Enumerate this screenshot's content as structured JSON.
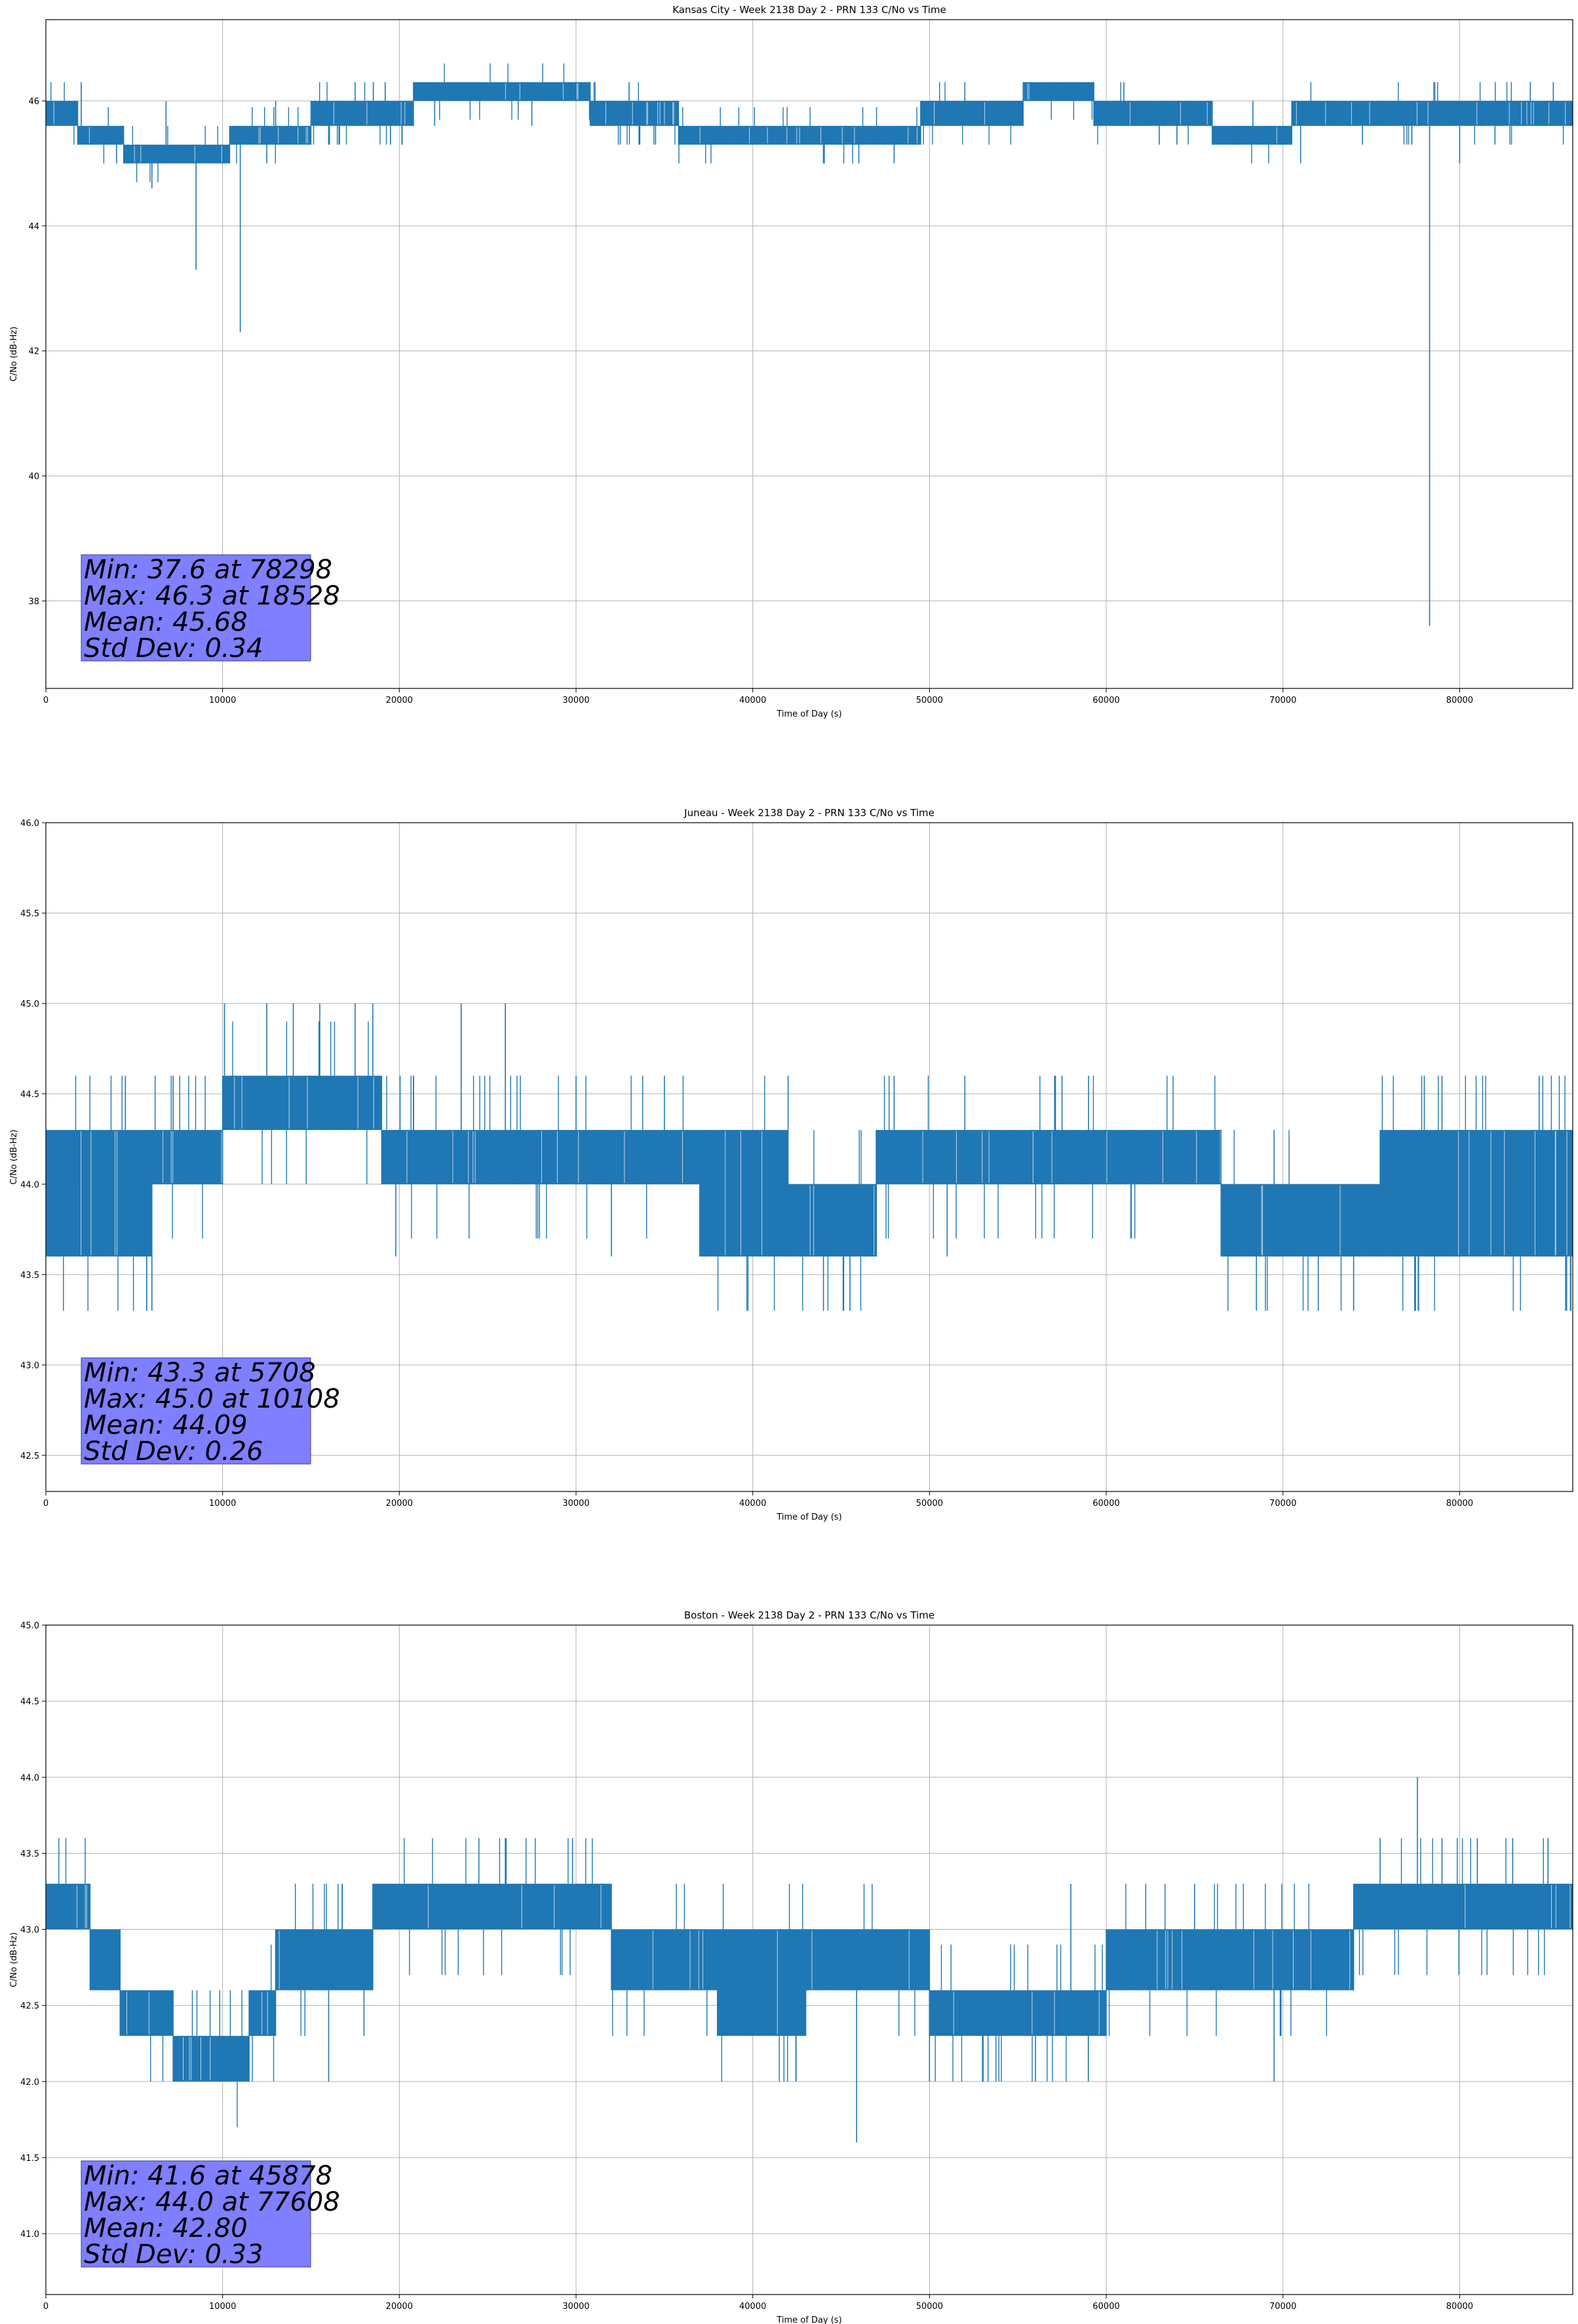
{
  "chart_data": [
    {
      "type": "line",
      "title": "Kansas City - Week 2138 Day 2 - PRN 133 C/No vs Time",
      "xlabel": "Time of Day (s)",
      "ylabel": "C/No (dB-Hz)",
      "xlim": [
        0,
        86400
      ],
      "ylim": [
        36.6,
        47.3
      ],
      "xticks": [
        0,
        10000,
        20000,
        30000,
        40000,
        50000,
        60000,
        70000,
        80000
      ],
      "yticks": [
        38,
        40,
        42,
        44,
        46
      ],
      "grid": true,
      "line_color": "#1f77b4",
      "stats": [
        "Min: 37.6 at 78298",
        "Max: 46.3 at 18528",
        "Mean: 45.68",
        "Std Dev: 0.34"
      ],
      "bands": [
        {
          "x": [
            0,
            1800
          ],
          "lo": 45.6,
          "hi": 46.0
        },
        {
          "x": [
            1800,
            4400
          ],
          "lo": 45.3,
          "hi": 45.6
        },
        {
          "x": [
            4400,
            10400
          ],
          "lo": 45.0,
          "hi": 45.3
        },
        {
          "x": [
            10400,
            15000
          ],
          "lo": 45.3,
          "hi": 45.6
        },
        {
          "x": [
            15000,
            20800
          ],
          "lo": 45.6,
          "hi": 46.0
        },
        {
          "x": [
            20800,
            30800
          ],
          "lo": 46.0,
          "hi": 46.3
        },
        {
          "x": [
            30800,
            35800
          ],
          "lo": 45.6,
          "hi": 46.0
        },
        {
          "x": [
            35800,
            49500
          ],
          "lo": 45.3,
          "hi": 45.6
        },
        {
          "x": [
            49500,
            55300
          ],
          "lo": 45.6,
          "hi": 46.0
        },
        {
          "x": [
            55300,
            59300
          ],
          "lo": 46.0,
          "hi": 46.3
        },
        {
          "x": [
            59300,
            66000
          ],
          "lo": 45.6,
          "hi": 46.0
        },
        {
          "x": [
            66000,
            70500
          ],
          "lo": 45.3,
          "hi": 45.6
        },
        {
          "x": [
            70500,
            86400
          ],
          "lo": 45.6,
          "hi": 46.0
        }
      ],
      "spikes_up": [
        [
          2000,
          46.3
        ],
        [
          6800,
          46.0
        ],
        [
          13000,
          46.0
        ],
        [
          17500,
          46.3
        ],
        [
          18528,
          46.3
        ],
        [
          19200,
          46.3
        ],
        [
          33000,
          46.3
        ],
        [
          52000,
          46.3
        ],
        [
          61000,
          46.3
        ],
        [
          68300,
          46.0
        ],
        [
          84000,
          46.3
        ],
        [
          85300,
          46.3
        ]
      ],
      "spikes_down": [
        [
          2300,
          45.3
        ],
        [
          4000,
          45.0
        ],
        [
          6000,
          44.6
        ],
        [
          8500,
          43.3
        ],
        [
          11000,
          42.3
        ],
        [
          12500,
          45.0
        ],
        [
          16000,
          45.3
        ],
        [
          19500,
          45.3
        ],
        [
          22000,
          45.6
        ],
        [
          27500,
          45.6
        ],
        [
          32500,
          45.3
        ],
        [
          34500,
          45.3
        ],
        [
          44000,
          45.0
        ],
        [
          46000,
          45.0
        ],
        [
          48000,
          45.0
        ],
        [
          55000,
          45.6
        ],
        [
          60500,
          45.6
        ],
        [
          63000,
          45.3
        ],
        [
          64000,
          45.3
        ],
        [
          71000,
          45.0
        ],
        [
          74500,
          45.3
        ],
        [
          78298,
          37.6
        ],
        [
          80000,
          45.0
        ],
        [
          82000,
          45.3
        ]
      ]
    },
    {
      "type": "line",
      "title": "Juneau - Week 2138 Day 2 - PRN 133 C/No vs Time",
      "xlabel": "Time of Day (s)",
      "ylabel": "C/No (dB-Hz)",
      "xlim": [
        0,
        86400
      ],
      "ylim": [
        42.3,
        46.0
      ],
      "xticks": [
        0,
        10000,
        20000,
        30000,
        40000,
        50000,
        60000,
        70000,
        80000
      ],
      "yticks": [
        42.5,
        43.0,
        43.5,
        44.0,
        44.5,
        45.0,
        45.5,
        46.0
      ],
      "grid": true,
      "line_color": "#1f77b4",
      "stats": [
        "Min: 43.3 at 5708",
        "Max: 45.0 at 10108",
        "Mean: 44.09",
        "Std Dev: 0.26"
      ],
      "bands": [
        {
          "x": [
            0,
            6000
          ],
          "lo": 43.6,
          "hi": 44.3
        },
        {
          "x": [
            6000,
            10000
          ],
          "lo": 44.0,
          "hi": 44.3
        },
        {
          "x": [
            10000,
            19000
          ],
          "lo": 44.3,
          "hi": 44.6
        },
        {
          "x": [
            19000,
            26500
          ],
          "lo": 44.0,
          "hi": 44.3
        },
        {
          "x": [
            26500,
            37000
          ],
          "lo": 44.0,
          "hi": 44.3
        },
        {
          "x": [
            37000,
            42000
          ],
          "lo": 43.6,
          "hi": 44.3
        },
        {
          "x": [
            42000,
            47000
          ],
          "lo": 43.6,
          "hi": 44.0
        },
        {
          "x": [
            47000,
            66500
          ],
          "lo": 44.0,
          "hi": 44.3
        },
        {
          "x": [
            66500,
            75500
          ],
          "lo": 43.6,
          "hi": 44.0
        },
        {
          "x": [
            75500,
            86400
          ],
          "lo": 43.6,
          "hi": 44.3
        }
      ],
      "spikes_up": [
        [
          4500,
          44.6
        ],
        [
          7200,
          44.6
        ],
        [
          10108,
          45.0
        ],
        [
          12500,
          45.0
        ],
        [
          14000,
          45.0
        ],
        [
          15500,
          45.0
        ],
        [
          17500,
          45.0
        ],
        [
          18500,
          45.0
        ],
        [
          23500,
          45.0
        ],
        [
          26000,
          45.0
        ],
        [
          30000,
          44.6
        ],
        [
          35000,
          44.6
        ],
        [
          42000,
          44.6
        ],
        [
          48000,
          44.6
        ],
        [
          52000,
          44.6
        ],
        [
          57500,
          44.6
        ],
        [
          59000,
          44.6
        ],
        [
          69500,
          44.3
        ],
        [
          78000,
          44.6
        ],
        [
          79000,
          44.6
        ],
        [
          84500,
          44.6
        ]
      ],
      "spikes_down": [
        [
          5708,
          43.3
        ],
        [
          6000,
          43.3
        ],
        [
          19800,
          43.6
        ],
        [
          32000,
          43.6
        ],
        [
          38500,
          43.6
        ],
        [
          44000,
          43.3
        ],
        [
          45500,
          43.3
        ],
        [
          51000,
          43.6
        ],
        [
          68500,
          43.3
        ],
        [
          72000,
          43.3
        ],
        [
          74000,
          43.3
        ],
        [
          77500,
          43.3
        ],
        [
          86000,
          43.3
        ]
      ]
    },
    {
      "type": "line",
      "title": "Boston - Week 2138 Day 2 - PRN 133 C/No vs Time",
      "xlabel": "Time of Day (s)",
      "ylabel": "C/No (dB-Hz)",
      "xlim": [
        0,
        86400
      ],
      "ylim": [
        40.6,
        45.0
      ],
      "xticks": [
        0,
        10000,
        20000,
        30000,
        40000,
        50000,
        60000,
        70000,
        80000
      ],
      "yticks": [
        41.0,
        41.5,
        42.0,
        42.5,
        43.0,
        43.5,
        44.0,
        44.5,
        45.0
      ],
      "grid": true,
      "line_color": "#1f77b4",
      "stats": [
        "Min: 41.6 at 45878",
        "Max: 44.0 at 77608",
        "Mean: 42.80",
        "Std Dev: 0.33"
      ],
      "bands": [
        {
          "x": [
            0,
            2500
          ],
          "lo": 43.0,
          "hi": 43.3
        },
        {
          "x": [
            2500,
            4200
          ],
          "lo": 42.6,
          "hi": 43.0
        },
        {
          "x": [
            4200,
            7200
          ],
          "lo": 42.3,
          "hi": 42.6
        },
        {
          "x": [
            7200,
            11500
          ],
          "lo": 42.0,
          "hi": 42.3
        },
        {
          "x": [
            11500,
            13000
          ],
          "lo": 42.3,
          "hi": 42.6
        },
        {
          "x": [
            13000,
            18500
          ],
          "lo": 42.6,
          "hi": 43.0
        },
        {
          "x": [
            18500,
            32000
          ],
          "lo": 43.0,
          "hi": 43.3
        },
        {
          "x": [
            32000,
            38000
          ],
          "lo": 42.6,
          "hi": 43.0
        },
        {
          "x": [
            38000,
            43000
          ],
          "lo": 42.3,
          "hi": 43.0
        },
        {
          "x": [
            43000,
            50000
          ],
          "lo": 42.6,
          "hi": 43.0
        },
        {
          "x": [
            50000,
            60000
          ],
          "lo": 42.3,
          "hi": 42.6
        },
        {
          "x": [
            60000,
            74000
          ],
          "lo": 42.6,
          "hi": 43.0
        },
        {
          "x": [
            74000,
            86400
          ],
          "lo": 43.0,
          "hi": 43.3
        }
      ],
      "spikes_up": [
        [
          24500,
          43.6
        ],
        [
          26000,
          43.6
        ],
        [
          29800,
          43.6
        ],
        [
          58000,
          43.3
        ],
        [
          65000,
          43.3
        ],
        [
          75500,
          43.6
        ],
        [
          77608,
          44.0
        ],
        [
          79000,
          43.6
        ],
        [
          81000,
          43.6
        ],
        [
          83000,
          43.6
        ],
        [
          85000,
          43.6
        ]
      ],
      "spikes_down": [
        [
          16000,
          42.0
        ],
        [
          18000,
          42.3
        ],
        [
          45878,
          41.6
        ],
        [
          50000,
          42.0
        ],
        [
          53000,
          42.0
        ],
        [
          56000,
          42.0
        ],
        [
          69500,
          42.0
        ]
      ]
    }
  ]
}
